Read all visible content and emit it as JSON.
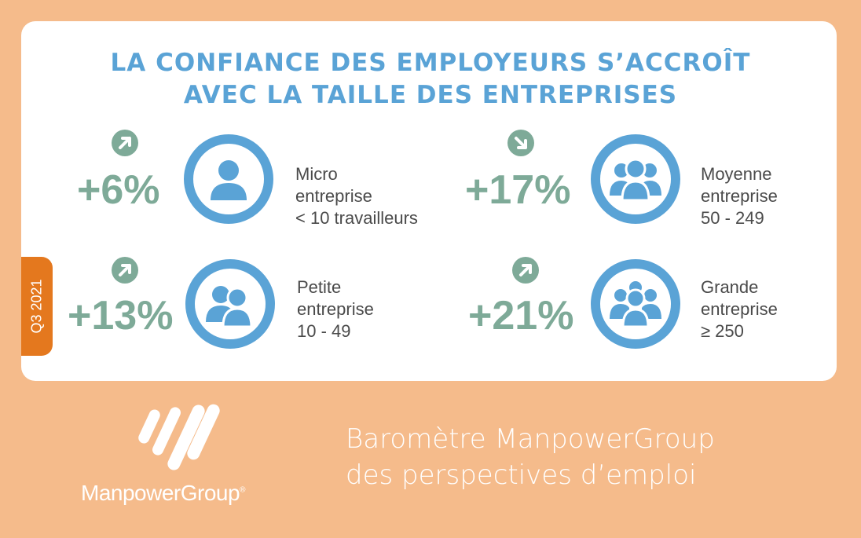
{
  "title": {
    "line1": "LA CONFIANCE DES EMPLOYEURS S’ACCROÎT",
    "line2": "AVEC LA TAILLE DES ENTREPRISES"
  },
  "quarter": "Q3 2021",
  "segments": [
    {
      "id": "micro",
      "trend": "up",
      "percent": "+6%",
      "label_line1": "Micro",
      "label_line2": "entreprise",
      "label_line3": "< 10 travailleurs",
      "icon": "single-person-icon"
    },
    {
      "id": "moyenne",
      "trend": "down",
      "percent": "+17%",
      "label_line1": "Moyenne",
      "label_line2": "entreprise",
      "label_line3": "50 - 249",
      "icon": "group-of-people-icon"
    },
    {
      "id": "petite",
      "trend": "up",
      "percent": "+13%",
      "label_line1": "Petite",
      "label_line2": "entreprise",
      "label_line3": "10 - 49",
      "icon": "two-people-icon"
    },
    {
      "id": "grande",
      "trend": "up",
      "percent": "+21%",
      "label_line1": "Grande",
      "label_line2": "entreprise",
      "label_line3": "≥ 250",
      "icon": "crowd-icon"
    }
  ],
  "brand": {
    "name": "ManpowerGroup",
    "registered": "®"
  },
  "barometer": {
    "line1": "Baromètre ManpowerGroup",
    "line2": "des perspectives d’emploi"
  },
  "colors": {
    "background": "#f5bb8b",
    "title": "#5aa3d6",
    "percent": "#7eaa98",
    "ring": "#5aa3d6",
    "quarter_tab": "#e4781e"
  }
}
